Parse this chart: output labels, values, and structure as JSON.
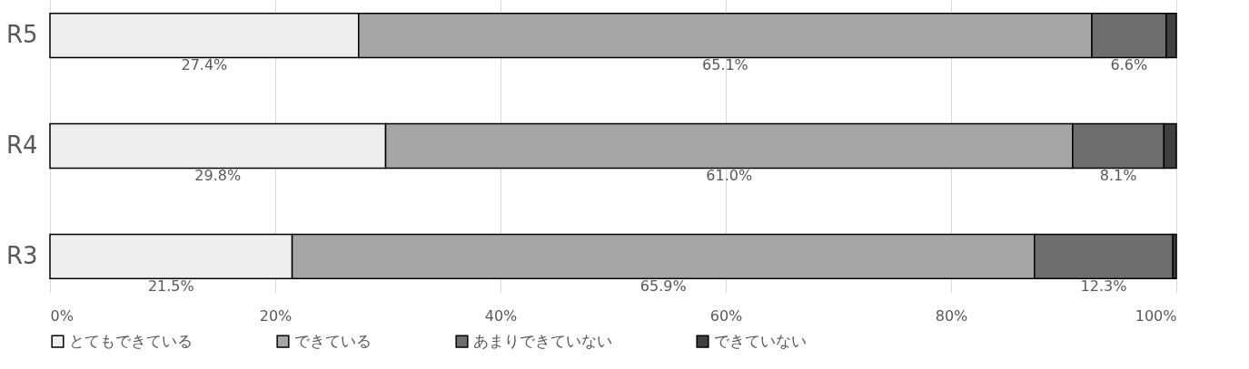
{
  "chart_data": {
    "type": "bar",
    "orientation": "horizontal",
    "stacked": true,
    "categories": [
      "R5",
      "R4",
      "R3"
    ],
    "series": [
      {
        "name": "とてもできている",
        "color": "#eeeeee",
        "values": [
          27.4,
          29.8,
          21.5
        ],
        "value_labels": [
          "27.4%",
          "29.8%",
          "21.5%"
        ]
      },
      {
        "name": "できている",
        "color": "#a6a6a6",
        "values": [
          65.1,
          61.0,
          65.9
        ],
        "value_labels": [
          "65.1%",
          "61.0%",
          "65.9%"
        ]
      },
      {
        "name": "あまりできていない",
        "color": "#6e6e6e",
        "values": [
          6.6,
          8.1,
          12.3
        ],
        "value_labels": [
          "6.6%",
          "8.1%",
          "12.3%"
        ]
      },
      {
        "name": "できていない",
        "color": "#404040",
        "values": [
          0.9,
          1.1,
          0.3
        ],
        "value_labels": [
          null,
          null,
          null
        ]
      }
    ],
    "xlim": [
      0,
      100
    ],
    "xticks": [
      {
        "value": 0,
        "label": "0%"
      },
      {
        "value": 20,
        "label": "20%"
      },
      {
        "value": 40,
        "label": "40%"
      },
      {
        "value": 60,
        "label": "60%"
      },
      {
        "value": 80,
        "label": "80%"
      },
      {
        "value": 100,
        "label": "100%"
      }
    ],
    "grid": "x",
    "legend": "bottom"
  }
}
